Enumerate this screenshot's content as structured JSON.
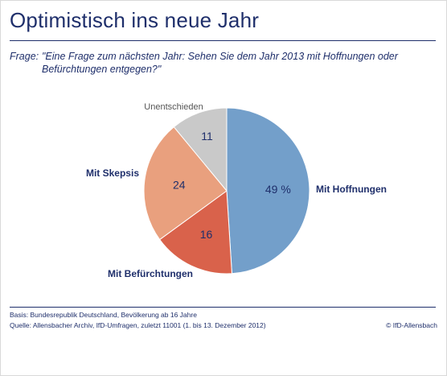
{
  "title": "Optimistisch ins neue Jahr",
  "question_label": "Frage:",
  "question_text": "\"Eine Frage zum nächsten Jahr: Sehen Sie dem Jahr 2013 mit Hoffnungen oder Befürchtungen entgegen?\"",
  "footer": {
    "basis": "Basis: Bundesrepublik Deutschland, Bevölkerung ab 16 Jahre",
    "source": "Quelle: Allensbacher Archiv, IfD-Umfragen, zuletzt 11001 (1. bis 13. Dezember 2012)",
    "copyright": "© IfD-Allensbach"
  },
  "chart_data": {
    "type": "pie",
    "start_angle": "12 o'clock, clockwise",
    "slices": [
      {
        "label": "Mit Hoffnungen",
        "value": 49,
        "value_text": "49 %",
        "color": "#739fca",
        "label_color": "#1f2f6b"
      },
      {
        "label": "Mit Befürchtungen",
        "value": 16,
        "value_text": "16",
        "color": "#d9624b",
        "label_color": "#1f2f6b"
      },
      {
        "label": "Mit Skepsis",
        "value": 24,
        "value_text": "24",
        "color": "#e9a07e",
        "label_color": "#1f2f6b"
      },
      {
        "label": "Unentschieden",
        "value": 11,
        "value_text": "11",
        "color": "#c9c9c9",
        "label_color": "#555555"
      }
    ]
  }
}
